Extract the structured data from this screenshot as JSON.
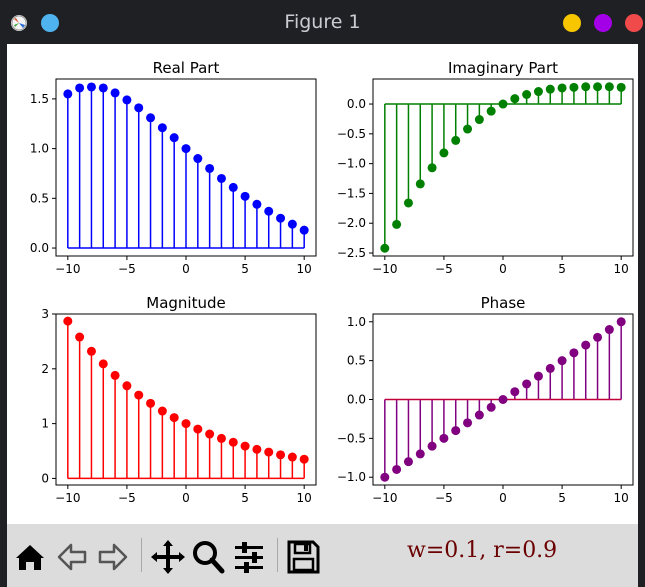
{
  "window": {
    "title": "Figure 1"
  },
  "titlebar_colors": {
    "app_blue": "#4fb3f0",
    "yellow": "#f7c600",
    "purple": "#a400e8",
    "red": "#f14a4a"
  },
  "toolbar": {
    "icons": [
      "home-icon",
      "back-icon",
      "forward-icon",
      "pan-icon",
      "zoom-icon",
      "configure-subplots-icon",
      "save-icon"
    ],
    "status": "w=0.1, r=0.9"
  },
  "chart_data": [
    {
      "type": "stem",
      "title": "Real Part",
      "color": "#0000ff",
      "x": [
        -10,
        -9,
        -8,
        -7,
        -6,
        -5,
        -4,
        -3,
        -2,
        -1,
        0,
        1,
        2,
        3,
        4,
        5,
        6,
        7,
        8,
        9,
        10
      ],
      "values": [
        1.55,
        1.61,
        1.62,
        1.61,
        1.56,
        1.49,
        1.41,
        1.31,
        1.21,
        1.11,
        1.0,
        0.9,
        0.8,
        0.7,
        0.61,
        0.52,
        0.44,
        0.37,
        0.3,
        0.24,
        0.18
      ],
      "xlim": [
        -11,
        11
      ],
      "ylim": [
        -0.08,
        1.7
      ],
      "xticks": [
        -10,
        -5,
        0,
        5,
        10
      ],
      "xtick_labels": [
        "−10",
        "−5",
        "0",
        "5",
        "10"
      ],
      "yticks": [
        0,
        0.5,
        1,
        1.5
      ],
      "ytick_labels": [
        "0.0",
        "0.5",
        "1.0",
        "1.5"
      ]
    },
    {
      "type": "stem",
      "title": "Imaginary Part",
      "color": "#008000",
      "x": [
        -10,
        -9,
        -8,
        -7,
        -6,
        -5,
        -4,
        -3,
        -2,
        -1,
        0,
        1,
        2,
        3,
        4,
        5,
        6,
        7,
        8,
        9,
        10
      ],
      "values": [
        -2.42,
        -2.02,
        -1.66,
        -1.34,
        -1.07,
        -0.82,
        -0.61,
        -0.42,
        -0.26,
        -0.12,
        0.0,
        0.09,
        0.16,
        0.21,
        0.25,
        0.27,
        0.28,
        0.29,
        0.29,
        0.29,
        0.28
      ],
      "xlim": [
        -11,
        11
      ],
      "ylim": [
        -2.55,
        0.42
      ],
      "xticks": [
        -10,
        -5,
        0,
        5,
        10
      ],
      "xtick_labels": [
        "−10",
        "−5",
        "0",
        "5",
        "10"
      ],
      "yticks": [
        0,
        -0.5,
        -1,
        -1.5,
        -2,
        -2.5
      ],
      "ytick_labels": [
        "0.0",
        "−0.5",
        "−1.0",
        "−1.5",
        "−2.0",
        "−2.5"
      ]
    },
    {
      "type": "stem",
      "title": "Magnitude",
      "color": "#ff0000",
      "x": [
        -10,
        -9,
        -8,
        -7,
        -6,
        -5,
        -4,
        -3,
        -2,
        -1,
        0,
        1,
        2,
        3,
        4,
        5,
        6,
        7,
        8,
        9,
        10
      ],
      "values": [
        2.87,
        2.58,
        2.32,
        2.09,
        1.88,
        1.69,
        1.52,
        1.37,
        1.23,
        1.11,
        1.0,
        0.9,
        0.81,
        0.73,
        0.66,
        0.59,
        0.53,
        0.48,
        0.43,
        0.39,
        0.35
      ],
      "xlim": [
        -11,
        11
      ],
      "ylim": [
        -0.12,
        3.0
      ],
      "xticks": [
        -10,
        -5,
        0,
        5,
        10
      ],
      "xtick_labels": [
        "−10",
        "−5",
        "0",
        "5",
        "10"
      ],
      "yticks": [
        0,
        1,
        2,
        3
      ],
      "ytick_labels": [
        "0",
        "1",
        "2",
        "3"
      ]
    },
    {
      "type": "stem",
      "title": "Phase",
      "color": "#800080",
      "baseline_color": "#c0003a",
      "x": [
        -10,
        -9,
        -8,
        -7,
        -6,
        -5,
        -4,
        -3,
        -2,
        -1,
        0,
        1,
        2,
        3,
        4,
        5,
        6,
        7,
        8,
        9,
        10
      ],
      "values": [
        -1.0,
        -0.9,
        -0.8,
        -0.7,
        -0.6,
        -0.5,
        -0.4,
        -0.3,
        -0.2,
        -0.1,
        0.0,
        0.1,
        0.2,
        0.3,
        0.4,
        0.5,
        0.6,
        0.7,
        0.8,
        0.9,
        1.0
      ],
      "xlim": [
        -11,
        11
      ],
      "ylim": [
        -1.1,
        1.1
      ],
      "xticks": [
        -10,
        -5,
        0,
        5,
        10
      ],
      "xtick_labels": [
        "−10",
        "−5",
        "0",
        "5",
        "10"
      ],
      "yticks": [
        1,
        0.5,
        0,
        -0.5,
        -1
      ],
      "ytick_labels": [
        "1.0",
        "0.5",
        "0.0",
        "−0.5",
        "−1.0"
      ]
    }
  ]
}
